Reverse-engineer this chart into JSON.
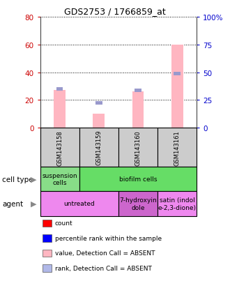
{
  "title": "GDS2753 / 1766859_at",
  "samples": [
    "GSM143158",
    "GSM143159",
    "GSM143160",
    "GSM143161"
  ],
  "bar_values_pink": [
    27,
    10,
    26,
    60
  ],
  "bar_values_blue_rank": [
    28,
    18,
    27,
    39
  ],
  "left_ylim": [
    0,
    80
  ],
  "right_ylim": [
    0,
    100
  ],
  "left_yticks": [
    0,
    20,
    40,
    60,
    80
  ],
  "right_yticks": [
    0,
    25,
    50,
    75,
    100
  ],
  "right_yticklabels": [
    "0",
    "25",
    "50",
    "75",
    "100%"
  ],
  "cell_type_row": [
    {
      "label": "suspension\ncells",
      "color": "#88dd88",
      "span": [
        0,
        1
      ]
    },
    {
      "label": "biofilm cells",
      "color": "#66dd66",
      "span": [
        1,
        4
      ]
    }
  ],
  "agent_row": [
    {
      "label": "untreated",
      "color": "#ee88ee",
      "span": [
        0,
        2
      ]
    },
    {
      "label": "7-hydroxyin\ndole",
      "color": "#cc66cc",
      "span": [
        2,
        3
      ]
    },
    {
      "label": "satin (indol\ne-2,3-dione)",
      "color": "#ee88ee",
      "span": [
        3,
        4
      ]
    }
  ],
  "bar_color_pink": "#ffb6c1",
  "bar_color_blue": "#9999cc",
  "left_tick_color": "#cc0000",
  "right_tick_color": "#0000cc",
  "sample_box_color": "#cccccc",
  "legend_items": [
    {
      "color": "#ff0000",
      "label": "count"
    },
    {
      "color": "#0000ff",
      "label": "percentile rank within the sample"
    },
    {
      "color": "#ffb6c1",
      "label": "value, Detection Call = ABSENT"
    },
    {
      "color": "#b0b8e8",
      "label": "rank, Detection Call = ABSENT"
    }
  ]
}
